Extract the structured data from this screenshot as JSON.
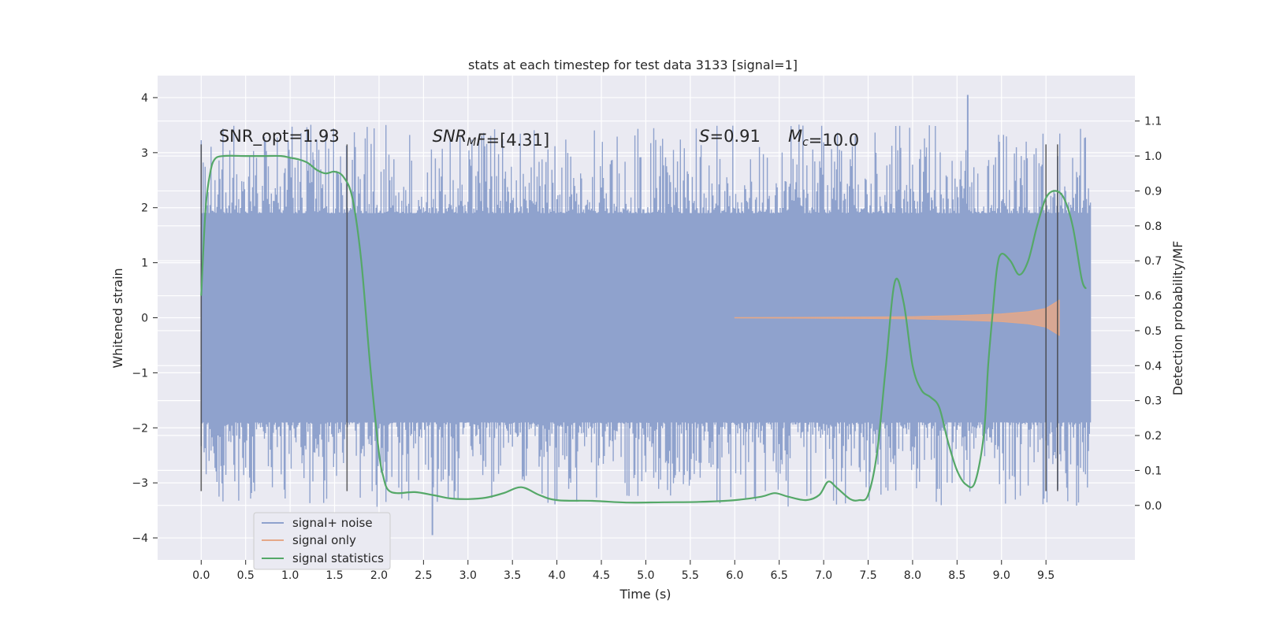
{
  "chart_data": {
    "type": "line",
    "title": "stats at each timestep for test data 3133 [signal=1]",
    "xlabel": "Time (s)",
    "ylabel": "Whitened strain",
    "y2label": "Detection probability/MF",
    "xlim": [
      -0.49,
      10.5
    ],
    "ylim": [
      -4.4,
      4.4
    ],
    "y2lim": [
      -0.156,
      1.23
    ],
    "xticks": [
      0.0,
      0.5,
      1.0,
      1.5,
      2.0,
      2.5,
      3.0,
      3.5,
      4.0,
      4.5,
      5.0,
      5.5,
      6.0,
      6.5,
      7.0,
      7.5,
      8.0,
      8.5,
      9.0,
      9.5
    ],
    "xtick_labels": [
      "0.0",
      "0.5",
      "1.0",
      "1.5",
      "2.0",
      "2.5",
      "3.0",
      "3.5",
      "4.0",
      "4.5",
      "5.0",
      "5.5",
      "6.0",
      "6.5",
      "7.0",
      "7.5",
      "8.0",
      "8.5",
      "9.0",
      "9.5"
    ],
    "yticks": [
      4,
      3,
      2,
      1,
      0,
      -1,
      -2,
      -3,
      -4
    ],
    "ytick_labels": [
      "4",
      "3",
      "2",
      "1",
      "0",
      "−1",
      "−2",
      "−3",
      "−4"
    ],
    "y2ticks": [
      1.1,
      1.0,
      0.9,
      0.8,
      0.7,
      0.6,
      0.5,
      0.4,
      0.3,
      0.2,
      0.1,
      0.0
    ],
    "y2tick_labels": [
      "1.1",
      "1.0",
      "0.9",
      "0.8",
      "0.7",
      "0.6",
      "0.5",
      "0.4",
      "0.3",
      "0.2",
      "0.1",
      "0.0"
    ],
    "grid": true,
    "legend_position": "lower-left",
    "annotations": [
      {
        "x": 0.2,
        "y": 3.2,
        "parts": [
          {
            "t": "SNR_opt=1.93"
          }
        ]
      },
      {
        "x": 2.6,
        "y": 3.2,
        "parts": [
          {
            "t": "SNR",
            "i": true
          },
          {
            "t": "M",
            "i": true,
            "sub": true
          },
          {
            "t": "F",
            "i": true
          },
          {
            "t": "=[4.31]"
          }
        ]
      },
      {
        "x": 5.6,
        "y": 3.2,
        "parts": [
          {
            "t": "S",
            "i": true
          },
          {
            "t": "=0.91"
          }
        ]
      },
      {
        "x": 6.6,
        "y": 3.2,
        "parts": [
          {
            "t": "M",
            "i": true
          },
          {
            "t": "c",
            "i": true,
            "sub": true
          },
          {
            "t": "=10.0"
          }
        ]
      }
    ],
    "vertical_markers": [
      0.0,
      1.64,
      9.5,
      9.63
    ],
    "vertical_marker_range": [
      -3.15,
      3.15
    ],
    "series": [
      {
        "name": "signal+ noise",
        "color": "#8fa2cd",
        "x_range": [
          0.0,
          10.0
        ],
        "band_1sigma": 1.3,
        "band_typical": 1.9,
        "peak_max": 4.05,
        "peak_min": -3.95
      },
      {
        "name": "signal only",
        "color": "#e5a888",
        "x_range": [
          6.0,
          9.65
        ],
        "envelope": [
          [
            6.0,
            0.004
          ],
          [
            7.0,
            0.008
          ],
          [
            8.0,
            0.02
          ],
          [
            8.5,
            0.04
          ],
          [
            9.0,
            0.07
          ],
          [
            9.3,
            0.11
          ],
          [
            9.5,
            0.17
          ],
          [
            9.6,
            0.27
          ],
          [
            9.65,
            0.32
          ]
        ]
      },
      {
        "name": "signal statistics",
        "color": "#55a868",
        "axis": "right",
        "points": [
          [
            0.0,
            0.6
          ],
          [
            0.05,
            0.85
          ],
          [
            0.1,
            0.95
          ],
          [
            0.15,
            0.99
          ],
          [
            0.25,
            1.0
          ],
          [
            0.5,
            1.0
          ],
          [
            0.7,
            1.0
          ],
          [
            0.9,
            1.0
          ],
          [
            1.0,
            0.995
          ],
          [
            1.1,
            0.99
          ],
          [
            1.2,
            0.98
          ],
          [
            1.3,
            0.96
          ],
          [
            1.4,
            0.95
          ],
          [
            1.5,
            0.955
          ],
          [
            1.6,
            0.94
          ],
          [
            1.7,
            0.88
          ],
          [
            1.8,
            0.7
          ],
          [
            1.9,
            0.4
          ],
          [
            2.0,
            0.15
          ],
          [
            2.05,
            0.08
          ],
          [
            2.1,
            0.045
          ],
          [
            2.2,
            0.035
          ],
          [
            2.4,
            0.038
          ],
          [
            2.6,
            0.03
          ],
          [
            2.8,
            0.02
          ],
          [
            3.0,
            0.018
          ],
          [
            3.2,
            0.022
          ],
          [
            3.4,
            0.035
          ],
          [
            3.6,
            0.052
          ],
          [
            3.8,
            0.03
          ],
          [
            4.0,
            0.015
          ],
          [
            4.4,
            0.013
          ],
          [
            4.8,
            0.008
          ],
          [
            5.2,
            0.009
          ],
          [
            5.6,
            0.01
          ],
          [
            6.0,
            0.015
          ],
          [
            6.3,
            0.025
          ],
          [
            6.45,
            0.035
          ],
          [
            6.6,
            0.025
          ],
          [
            6.8,
            0.015
          ],
          [
            6.95,
            0.03
          ],
          [
            7.05,
            0.068
          ],
          [
            7.15,
            0.05
          ],
          [
            7.3,
            0.018
          ],
          [
            7.4,
            0.015
          ],
          [
            7.5,
            0.03
          ],
          [
            7.6,
            0.15
          ],
          [
            7.7,
            0.4
          ],
          [
            7.8,
            0.64
          ],
          [
            7.9,
            0.58
          ],
          [
            8.0,
            0.4
          ],
          [
            8.1,
            0.33
          ],
          [
            8.2,
            0.31
          ],
          [
            8.3,
            0.28
          ],
          [
            8.4,
            0.18
          ],
          [
            8.5,
            0.1
          ],
          [
            8.6,
            0.06
          ],
          [
            8.7,
            0.065
          ],
          [
            8.8,
            0.2
          ],
          [
            8.85,
            0.4
          ],
          [
            8.9,
            0.55
          ],
          [
            8.95,
            0.68
          ],
          [
            9.0,
            0.72
          ],
          [
            9.1,
            0.7
          ],
          [
            9.2,
            0.66
          ],
          [
            9.3,
            0.7
          ],
          [
            9.4,
            0.8
          ],
          [
            9.5,
            0.88
          ],
          [
            9.6,
            0.9
          ],
          [
            9.7,
            0.88
          ],
          [
            9.8,
            0.8
          ],
          [
            9.9,
            0.65
          ],
          [
            9.95,
            0.62
          ]
        ]
      }
    ]
  }
}
